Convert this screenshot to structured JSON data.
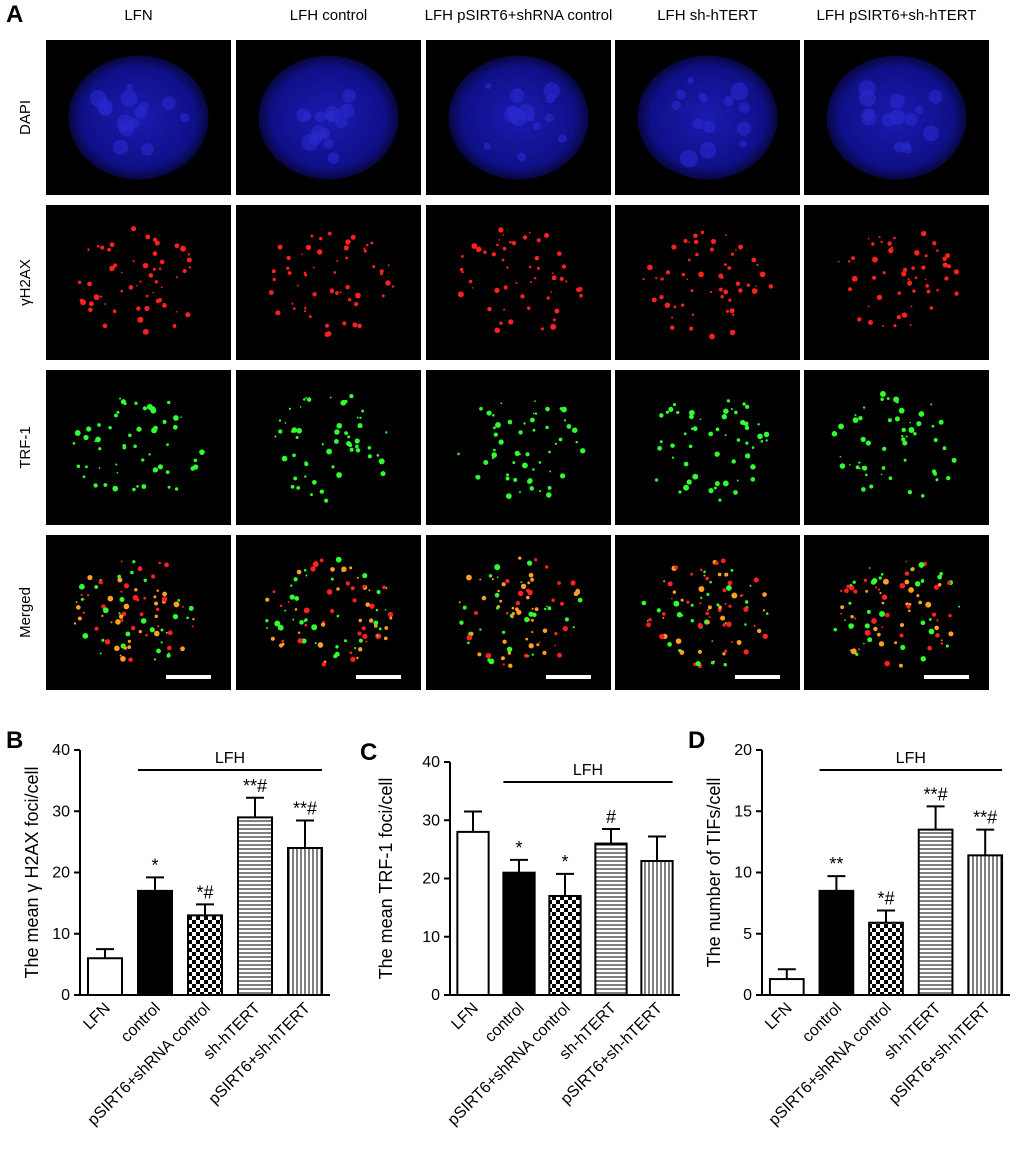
{
  "panel_a": {
    "label": "A",
    "columns": [
      "LFN",
      "LFH control",
      "LFH pSIRT6+shRNA control",
      "LFH sh-hTERT",
      "LFH pSIRT6+sh-hTERT"
    ],
    "rows": [
      "DAPI",
      "γH2AX",
      "TRF-1",
      "Merged"
    ]
  },
  "chart_data": [
    {
      "type": "bar",
      "panel": "B",
      "ylabel": "The mean γ H2AX foci/cell",
      "categories": [
        "LFN",
        "control",
        "pSIRT6+shRNA control",
        "sh-hTERT",
        "pSIRT6+sh-hTERT"
      ],
      "values": [
        6,
        17,
        13,
        29,
        24
      ],
      "errors": [
        1.5,
        2.2,
        1.8,
        3.2,
        4.5
      ],
      "annotations": [
        null,
        "*",
        "*#",
        "**#",
        "**#"
      ],
      "fills": [
        "white",
        "black",
        "checker",
        "hlines",
        "vlines"
      ],
      "group_label": "LFH",
      "group_span": [
        1,
        4
      ],
      "ylim": [
        0,
        40
      ],
      "yticks": [
        0,
        10,
        20,
        30,
        40
      ]
    },
    {
      "type": "bar",
      "panel": "C",
      "ylabel": "The mean TRF-1 foci/cell",
      "categories": [
        "LFN",
        "control",
        "pSIRT6+shRNA control",
        "sh-hTERT",
        "pSIRT6+sh-hTERT"
      ],
      "values": [
        28,
        21,
        17,
        26,
        23
      ],
      "errors": [
        3.5,
        2.2,
        3.8,
        2.5,
        4.2
      ],
      "annotations": [
        null,
        "*",
        "*",
        "#",
        null
      ],
      "fills": [
        "white",
        "black",
        "checker",
        "hlines",
        "vlines"
      ],
      "group_label": "LFH",
      "group_span": [
        1,
        4
      ],
      "ylim": [
        0,
        40
      ],
      "yticks": [
        0,
        10,
        20,
        30,
        40
      ]
    },
    {
      "type": "bar",
      "panel": "D",
      "ylabel": "The number of TIFs/cell",
      "categories": [
        "LFN",
        "control",
        "pSIRT6+shRNA control",
        "sh-hTERT",
        "pSIRT6+sh-hTERT"
      ],
      "values": [
        1.3,
        8.5,
        5.9,
        13.5,
        11.4
      ],
      "errors": [
        0.8,
        1.2,
        1.0,
        1.9,
        2.1
      ],
      "annotations": [
        null,
        "**",
        "*#",
        "**#",
        "**#"
      ],
      "fills": [
        "white",
        "black",
        "checker",
        "hlines",
        "vlines"
      ],
      "group_label": "LFH",
      "group_span": [
        1,
        4
      ],
      "ylim": [
        0,
        20
      ],
      "yticks": [
        0,
        5,
        10,
        15,
        20
      ]
    }
  ]
}
